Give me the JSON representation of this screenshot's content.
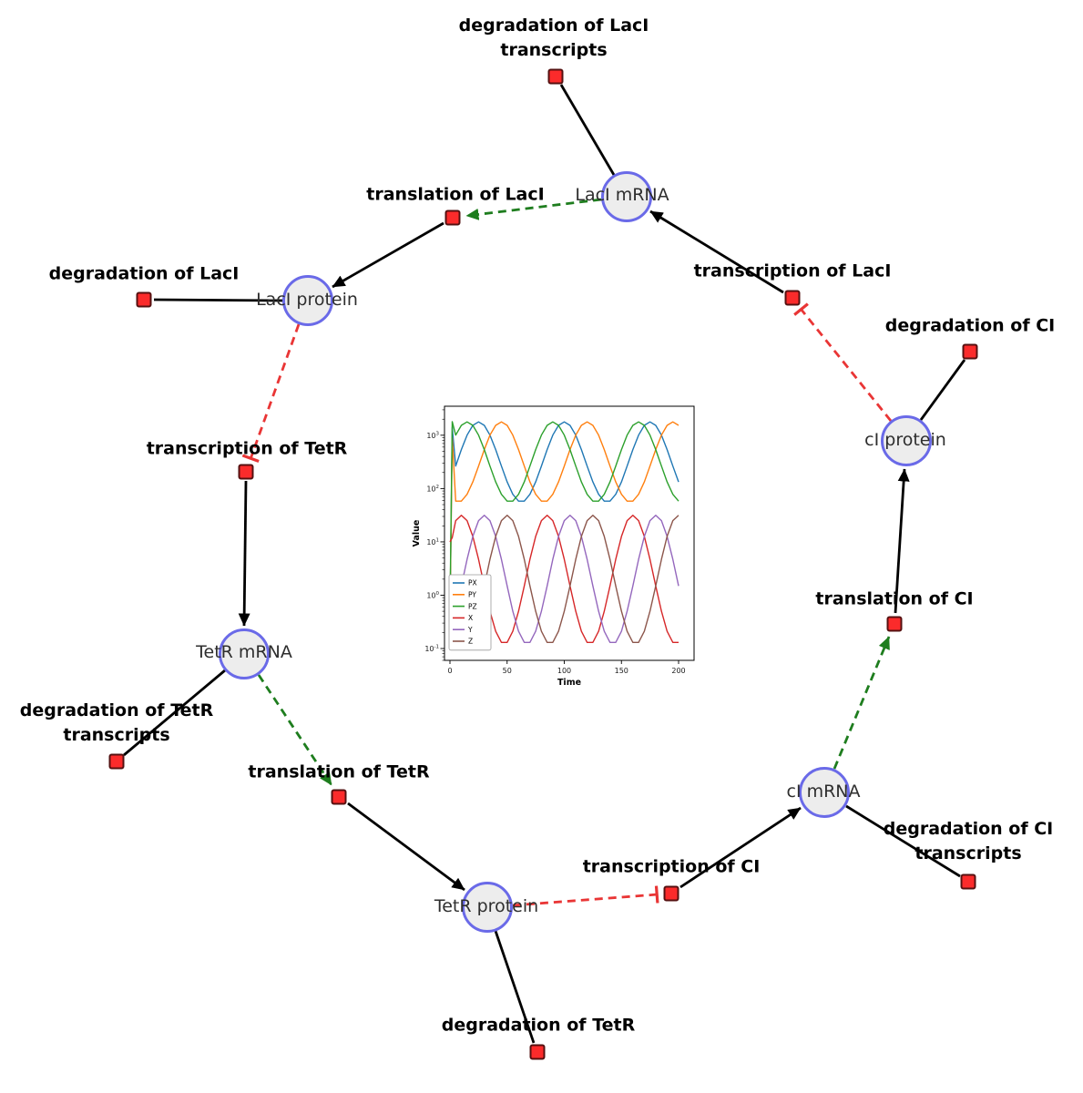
{
  "diagram": {
    "title": "repressilator network",
    "species": [
      {
        "label": "LacI mRNA"
      },
      {
        "label": "LacI protein"
      },
      {
        "label": "TetR mRNA"
      },
      {
        "label": "TetR protein"
      },
      {
        "label": "cI mRNA"
      },
      {
        "label": "cI protein"
      }
    ],
    "reactions": [
      {
        "label": "degradation of LacI transcripts"
      },
      {
        "label": "translation of LacI"
      },
      {
        "label": "degradation of LacI"
      },
      {
        "label": "transcription of LacI"
      },
      {
        "label": "degradation of CI"
      },
      {
        "label": "transcription of TetR"
      },
      {
        "label": "degradation of TetR transcripts"
      },
      {
        "label": "translation of TetR"
      },
      {
        "label": "degradation of TetR"
      },
      {
        "label": "transcription of CI"
      },
      {
        "label": "degradation of CI transcripts"
      },
      {
        "label": "translation of CI"
      }
    ],
    "colors": {
      "species_fill": "#ededed",
      "species_stroke": "#6a6ae8",
      "reaction_fill": "#fb2b2b",
      "reaction_stroke": "#551111",
      "production_edge": "#000000",
      "modifier_edge": "#1e7d1e",
      "inhibition_edge": "#e93535"
    }
  },
  "chart_data": {
    "type": "line",
    "title": "",
    "xlabel": "Time",
    "ylabel": "Value",
    "y_scale": "log",
    "xlim": [
      0,
      200
    ],
    "ylim": [
      0.06,
      3500
    ],
    "x_ticks": [
      0,
      50,
      100,
      150,
      200
    ],
    "y_tick_exponents": [
      -1,
      0,
      1,
      2,
      3
    ],
    "legend_position": "lower left",
    "x": [
      0,
      2,
      5,
      10,
      15,
      20,
      25,
      30,
      35,
      40,
      45,
      50,
      55,
      60,
      65,
      70,
      75,
      80,
      85,
      90,
      95,
      100,
      105,
      110,
      115,
      120,
      125,
      130,
      135,
      140,
      145,
      150,
      155,
      160,
      165,
      170,
      175,
      180,
      185,
      190,
      195,
      200
    ],
    "series": [
      {
        "name": "PX",
        "color": "#1f77b4",
        "values": [
          0.3,
          1400,
          264,
          539,
          1004,
          1534,
          1778,
          1534,
          1004,
          539,
          264,
          133,
          78,
          58,
          58,
          78,
          133,
          264,
          539,
          1004,
          1534,
          1778,
          1534,
          1004,
          539,
          264,
          133,
          78,
          58,
          58,
          78,
          133,
          264,
          539,
          1004,
          1534,
          1778,
          1534,
          1004,
          539,
          264,
          133
        ]
      },
      {
        "name": "PY",
        "color": "#ff7f0e",
        "values": [
          0.4,
          900,
          58,
          58,
          78,
          133,
          264,
          539,
          1004,
          1534,
          1778,
          1534,
          1004,
          539,
          264,
          133,
          78,
          58,
          58,
          78,
          133,
          264,
          539,
          1004,
          1534,
          1778,
          1534,
          1004,
          539,
          264,
          133,
          78,
          58,
          58,
          78,
          133,
          264,
          539,
          1004,
          1534,
          1778,
          1534
        ]
      },
      {
        "name": "PZ",
        "color": "#2ca02c",
        "values": [
          0.5,
          1800,
          1004,
          1534,
          1778,
          1534,
          1004,
          539,
          264,
          133,
          78,
          58,
          58,
          78,
          133,
          264,
          539,
          1004,
          1534,
          1778,
          1534,
          1004,
          539,
          264,
          133,
          78,
          58,
          58,
          78,
          133,
          264,
          539,
          1004,
          1534,
          1778,
          1534,
          1004,
          539,
          264,
          133,
          78,
          58
        ]
      },
      {
        "name": "X",
        "color": "#d62728",
        "values": [
          10,
          12,
          25,
          31.6,
          25,
          12.7,
          4.7,
          1.49,
          0.5,
          0.21,
          0.13,
          0.13,
          0.21,
          0.5,
          1.49,
          4.7,
          12.7,
          25,
          31.6,
          25,
          12.7,
          4.7,
          1.49,
          0.5,
          0.21,
          0.13,
          0.13,
          0.21,
          0.5,
          1.49,
          4.7,
          12.7,
          25,
          31.6,
          25,
          12.7,
          4.7,
          1.49,
          0.5,
          0.21,
          0.13,
          0.13
        ]
      },
      {
        "name": "Y",
        "color": "#9467bd",
        "values": [
          0.2,
          0.3,
          0.5,
          1.49,
          4.7,
          12.7,
          25,
          31.6,
          25,
          12.7,
          4.7,
          1.49,
          0.5,
          0.21,
          0.13,
          0.13,
          0.21,
          0.5,
          1.49,
          4.7,
          12.7,
          25,
          31.6,
          25,
          12.7,
          4.7,
          1.49,
          0.5,
          0.21,
          0.13,
          0.13,
          0.21,
          0.5,
          1.49,
          4.7,
          12.7,
          25,
          31.6,
          25,
          12.7,
          4.7,
          1.49
        ]
      },
      {
        "name": "Z",
        "color": "#8c564b",
        "values": [
          0.3,
          0.25,
          0.21,
          0.13,
          0.13,
          0.21,
          0.5,
          1.49,
          4.7,
          12.7,
          25,
          31.6,
          25,
          12.7,
          4.7,
          1.49,
          0.5,
          0.21,
          0.13,
          0.13,
          0.21,
          0.5,
          1.49,
          4.7,
          12.7,
          25,
          31.6,
          25,
          12.7,
          4.7,
          1.49,
          0.5,
          0.21,
          0.13,
          0.13,
          0.21,
          0.5,
          1.49,
          4.7,
          12.7,
          25,
          31.6
        ]
      }
    ]
  }
}
